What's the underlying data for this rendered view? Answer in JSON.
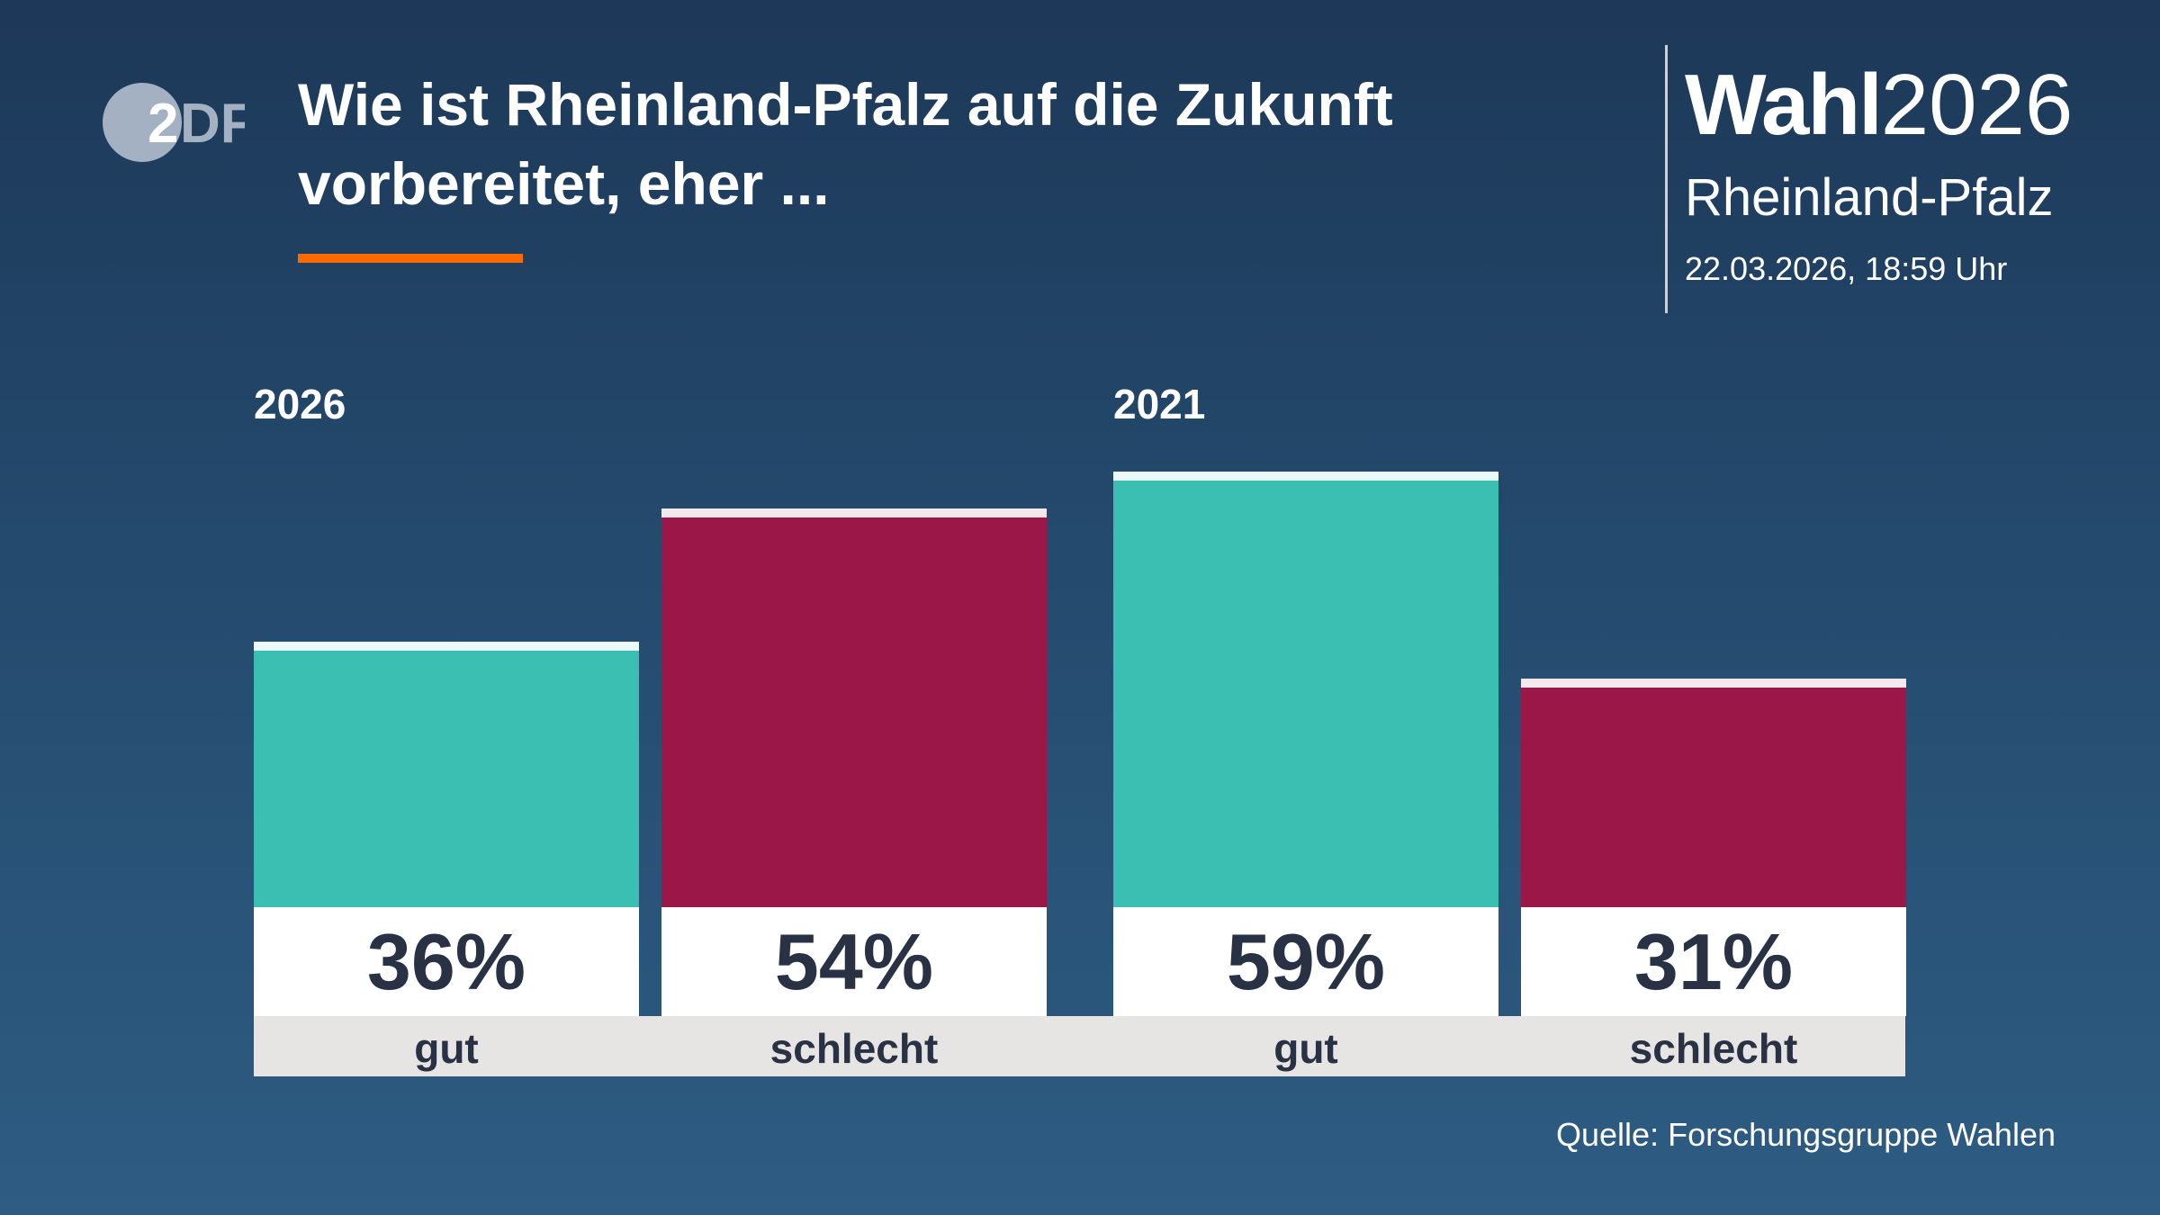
{
  "header": {
    "logo_text": "2DF",
    "title": "Wie ist Rheinland-Pfalz auf die Zukunft vorbereitet, eher ...",
    "brand_bold": "Wahl",
    "brand_year": "2026",
    "region": "Rheinland-Pfalz",
    "datetime": "22.03.2026, 18:59 Uhr"
  },
  "colors": {
    "accent": "#ff6a00",
    "gut": "#3bbfb2",
    "schlecht": "#9b1747",
    "background": "#244a6d"
  },
  "chart_data": {
    "type": "bar",
    "title": "Wie ist Rheinland-Pfalz auf die Zukunft vorbereitet, eher ...",
    "groups": [
      {
        "label": "2026",
        "bars": [
          {
            "category": "gut",
            "value": 36,
            "label": "36%"
          },
          {
            "category": "schlecht",
            "value": 54,
            "label": "54%"
          }
        ]
      },
      {
        "label": "2021",
        "bars": [
          {
            "category": "gut",
            "value": 59,
            "label": "59%"
          },
          {
            "category": "schlecht",
            "value": 31,
            "label": "31%"
          }
        ]
      }
    ],
    "unit": "%",
    "ylim": [
      0,
      100
    ],
    "grid": false
  },
  "footer": {
    "source": "Quelle: Forschungsgruppe Wahlen"
  }
}
